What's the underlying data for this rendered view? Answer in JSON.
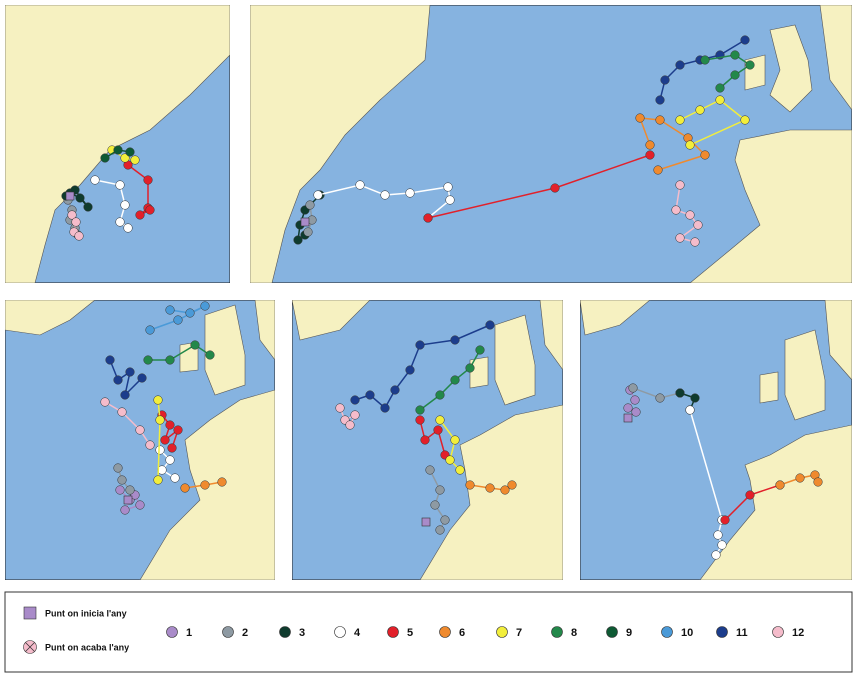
{
  "legend": {
    "start_label": "Punt on inicia l'any",
    "end_label": "Punt on acaba l'any",
    "months": [
      {
        "label": "1",
        "color": "#a98bc9"
      },
      {
        "label": "2",
        "color": "#8e9aa3"
      },
      {
        "label": "3",
        "color": "#0f3b2e"
      },
      {
        "label": "4",
        "color": "#ffffff"
      },
      {
        "label": "5",
        "color": "#e2202a"
      },
      {
        "label": "6",
        "color": "#ef8a2e"
      },
      {
        "label": "7",
        "color": "#f2ee3c"
      },
      {
        "label": "8",
        "color": "#23884a"
      },
      {
        "label": "9",
        "color": "#0e5a34"
      },
      {
        "label": "10",
        "color": "#4a9ad8"
      },
      {
        "label": "11",
        "color": "#1c3d8c"
      },
      {
        "label": "12",
        "color": "#f5bccb"
      }
    ]
  }
}
